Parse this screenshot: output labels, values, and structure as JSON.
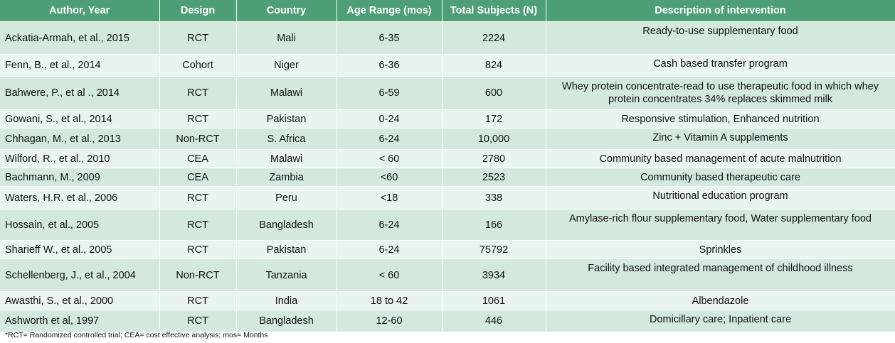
{
  "headers": [
    "Author, Year",
    "Design",
    "Country",
    "Age Range (mos)",
    "Total Subjects (N)",
    "Description of intervention"
  ],
  "rows": [
    {
      "author": "Ackatia-Armah, et al., 2015",
      "design": "RCT",
      "country": "Mali",
      "age": "6-35",
      "n": "2224",
      "desc": "Ready-to-use supplementary food"
    },
    {
      "author": "Fenn, B., et al., 2014",
      "design": "Cohort",
      "country": "Niger",
      "age": "6-36",
      "n": "824",
      "desc": "Cash based transfer program"
    },
    {
      "author": "Bahwere, P., et al ., 2014",
      "design": "RCT",
      "country": "Malawi",
      "age": "6-59",
      "n": "600",
      "desc": "Whey protein concentrate-read to use therapeutic food in which whey protein concentrates 34% replaces skimmed milk"
    },
    {
      "author": "Gowani, S.,  et al., 2014",
      "design": "RCT",
      "country": "Pakistan",
      "age": "0-24",
      "n": "172",
      "desc": "Responsive stimulation, Enhanced nutrition"
    },
    {
      "author": "Chhagan, M., et al., 2013",
      "design": "Non-RCT",
      "country": "S. Africa",
      "age": "6-24",
      "n": "10,000",
      "desc": "Zinc + Vitamin A supplements"
    },
    {
      "author": "Wilford, R., et al., 2010",
      "design": "CEA",
      "country": "Malawi",
      "age": "< 60",
      "n": "2780",
      "desc": "Community based management of acute malnutrition"
    },
    {
      "author": "Bachmann, M., 2009",
      "design": "CEA",
      "country": "Zambia",
      "age": "<60",
      "n": "2523",
      "desc": "Community based therapeutic care"
    },
    {
      "author": "Waters, H.R. et al., 2006",
      "design": "RCT",
      "country": "Peru",
      "age": "<18",
      "n": "338",
      "desc": "Nutritional education program"
    },
    {
      "author": "Hossain,  et al., 2005",
      "design": "RCT",
      "country": "Bangladesh",
      "age": "6-24",
      "n": "166",
      "desc": "Amylase-rich flour supplementary food, Water supplementary food"
    },
    {
      "author": "Sharieff W., et al., 2005",
      "design": "RCT",
      "country": "Pakistan",
      "age": "6-24",
      "n": "75792",
      "desc": "Sprinkles"
    },
    {
      "author": "Schellenberg, J., et al., 2004",
      "design": "Non-RCT",
      "country": "Tanzania",
      "age": "< 60",
      "n": "3934",
      "desc": "Facility based integrated management of childhood illness"
    },
    {
      "author": "Awasthi, S., et al., 2000",
      "design": "RCT",
      "country": "India",
      "age": "18 to 42",
      "n": "1061",
      "desc": "Albendazole"
    },
    {
      "author": "Ashworth et al, 1997",
      "design": "RCT",
      "country": "Bangladesh",
      "age": "12-60",
      "n": "446",
      "desc": "Domicillary care; Inpatient care"
    }
  ],
  "footnote": "*RCT= Randomized controlled trial; CEA= cost effective analysis; mos= Months",
  "colors": {
    "header_bg": "#4e9f78",
    "row_odd": "#d3e9dc",
    "row_even": "#eaf4ee"
  }
}
